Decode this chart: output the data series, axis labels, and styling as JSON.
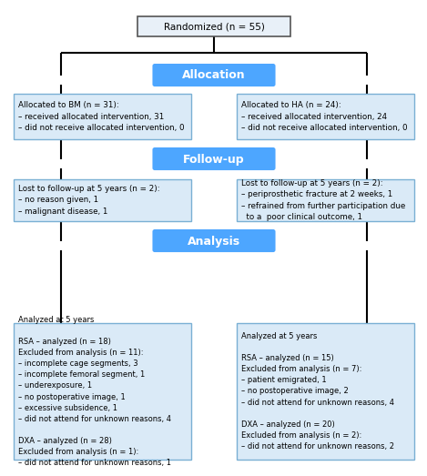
{
  "bg_color": "#ffffff",
  "box_bg_light": "#daeaf7",
  "box_bg_blue": "#4da6ff",
  "box_border_light": "#7ab0d4",
  "box_border_dark": "#666666",
  "line_color": "#000000",
  "randomized_text": "Randomized (n = 55)",
  "allocation_text": "Allocation",
  "followup_text": "Follow-up",
  "analysis_text": "Analysis",
  "bm_box_text": "Allocated to BM (n = 31):\n– received allocated intervention, 31\n– did not receive allocated intervention, 0",
  "ha_box_text": "Allocated to HA (n = 24):\n– received allocated intervention, 24\n– did not receive allocated intervention, 0",
  "lost_bm_text": "Lost to follow-up at 5 years (n = 2):\n– no reason given, 1\n– malignant disease, 1",
  "lost_ha_text": "Lost to follow-up at 5 years (n = 2):\n– periprosthetic fracture at 2 weeks, 1\n– refrained from further participation due\n  to a  poor clinical outcome, 1",
  "analysis_bm_text": "Analyzed at 5 years\n\nRSA – analyzed (n = 18)\nExcluded from analysis (n = 11):\n– incomplete cage segments, 3\n– incomplete femoral segment, 1\n– underexposure, 1\n– no postoperative image, 1\n– excessive subsidence, 1\n– did not attend for unknown reasons, 4\n\nDXA – analyzed (n = 28)\nExcluded from analysis (n = 1):\n– did not attend for unknown reasons, 1",
  "analysis_ha_text": "Analyzed at 5 years\n\nRSA – analyzed (n = 15)\nExcluded from analysis (n = 7):\n– patient emigrated, 1\n– no postoperative image, 2\n– did not attend for unknown reasons, 4\n\nDXA – analyzed (n = 20)\nExcluded from analysis (n = 2):\n– did not attend for unknown reasons, 2"
}
